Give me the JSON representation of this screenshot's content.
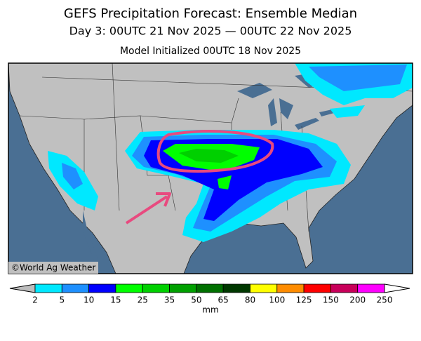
{
  "header": {
    "title": "GEFS Precipitation Forecast: Ensemble Median",
    "subtitle": "Day 3: 00UTC 21 Nov 2025 — 00UTC 22 Nov 2025",
    "init": "Model Initialized 00UTC 18 Nov 2025"
  },
  "credit": "©World Ag Weather",
  "colorbar": {
    "ticks": [
      2,
      5,
      10,
      15,
      25,
      35,
      50,
      65,
      80,
      100,
      125,
      150,
      200,
      250
    ],
    "colors": [
      "#00e8ff",
      "#1e90ff",
      "#0000ff",
      "#00ff00",
      "#00d000",
      "#00a000",
      "#007000",
      "#003800",
      "#ffff00",
      "#ff8c00",
      "#ff0000",
      "#c8005a",
      "#ff00ff"
    ],
    "under_color": "#bdbdbd",
    "over_color": "#ffffff",
    "unit": "mm"
  }
}
